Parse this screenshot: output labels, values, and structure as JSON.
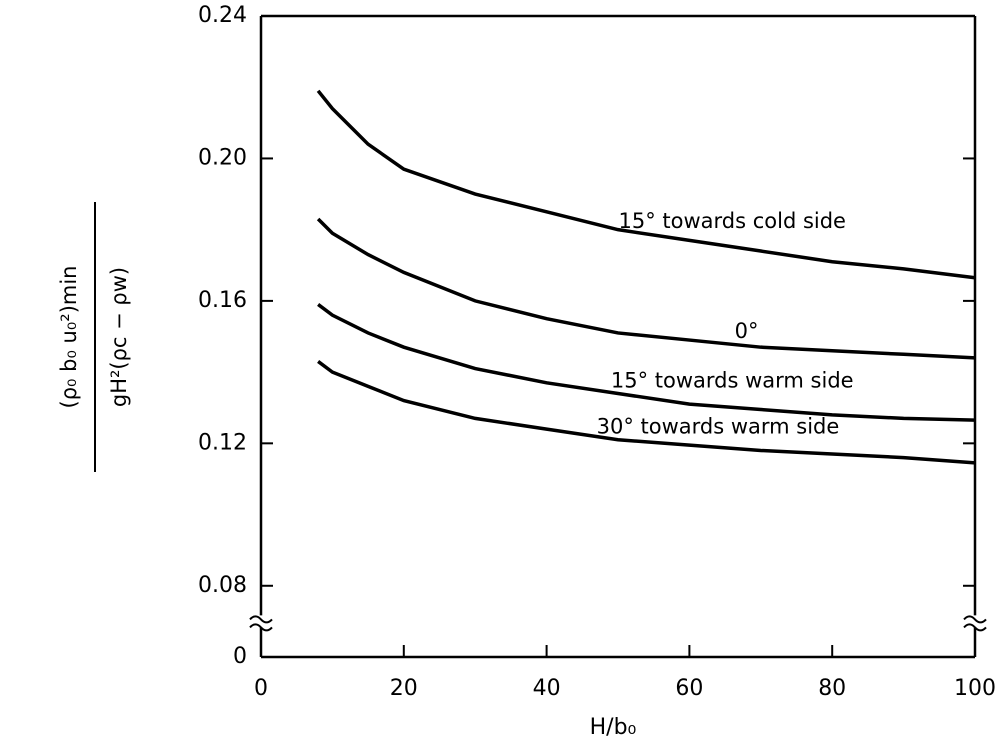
{
  "chart_data": {
    "type": "line",
    "x_label": "H/b₀",
    "y_label_numerator": "(ρ₀ b₀ u₀²)min",
    "y_label_denominator": "gH²(ρc − ρw)",
    "x": [
      8,
      10,
      15,
      20,
      30,
      40,
      50,
      60,
      70,
      80,
      90,
      100
    ],
    "series": [
      {
        "name": "15° towards cold side",
        "color": "#000000",
        "values": [
          0.219,
          0.214,
          0.204,
          0.197,
          0.19,
          0.185,
          0.18,
          0.177,
          0.174,
          0.171,
          0.169,
          0.1665
        ]
      },
      {
        "name": "0°",
        "color": "#000000",
        "values": [
          0.183,
          0.179,
          0.173,
          0.168,
          0.16,
          0.155,
          0.151,
          0.149,
          0.147,
          0.146,
          0.145,
          0.144
        ]
      },
      {
        "name": "15° towards warm side",
        "color": "#000000",
        "values": [
          0.159,
          0.156,
          0.151,
          0.147,
          0.141,
          0.137,
          0.134,
          0.131,
          0.1295,
          0.128,
          0.127,
          0.1265
        ]
      },
      {
        "name": "30° towards warm side",
        "color": "#000000",
        "values": [
          0.143,
          0.14,
          0.136,
          0.132,
          0.127,
          0.124,
          0.121,
          0.1195,
          0.118,
          0.117,
          0.116,
          0.1145
        ]
      }
    ],
    "xlim": [
      0,
      100
    ],
    "xticks": [
      0,
      20,
      40,
      60,
      80,
      100
    ],
    "ylim": [
      0,
      0.24
    ],
    "y_break": [
      0.01,
      0.07
    ],
    "yticks": [
      0,
      {
        "value": 0.08,
        "label": "0.08"
      },
      {
        "value": 0.12,
        "label": "0.12"
      },
      {
        "value": 0.16,
        "label": "0.16"
      },
      {
        "value": 0.2,
        "label": "0.20"
      },
      {
        "value": 0.24,
        "label": "0.24"
      }
    ],
    "grid": false
  }
}
